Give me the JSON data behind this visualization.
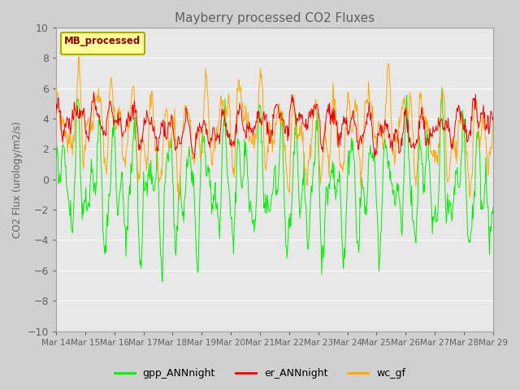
{
  "title": "Mayberry processed CO2 Fluxes",
  "ylabel": "CO2 Flux (urology/m2/s)",
  "ylim": [
    -10,
    10
  ],
  "yticks": [
    -10,
    -8,
    -6,
    -4,
    -2,
    0,
    2,
    4,
    6,
    8,
    10
  ],
  "x_tick_labels": [
    "Mar 14",
    "Mar 15",
    "Mar 16",
    "Mar 17",
    "Mar 18",
    "Mar 19",
    "Mar 20",
    "Mar 21",
    "Mar 22",
    "Mar 23",
    "Mar 24",
    "Mar 25",
    "Mar 26",
    "Mar 27",
    "Mar 28",
    "Mar 29"
  ],
  "legend_label": "MB_processed",
  "legend_text_color": "#8B0000",
  "legend_bg": "#FFFF99",
  "line_colors": {
    "gpp_ANNnight": "#00EE00",
    "er_ANNnight": "#EE0000",
    "wc_gf": "#FFA500"
  },
  "line_labels": [
    "gpp_ANNnight",
    "er_ANNnight",
    "wc_gf"
  ],
  "plot_bg_color": "#E8E8E8",
  "fig_bg_color": "#D0D0D0",
  "title_color": "#606060",
  "tick_color": "#606060",
  "grid_color": "#FFFFFF",
  "n_points": 720
}
